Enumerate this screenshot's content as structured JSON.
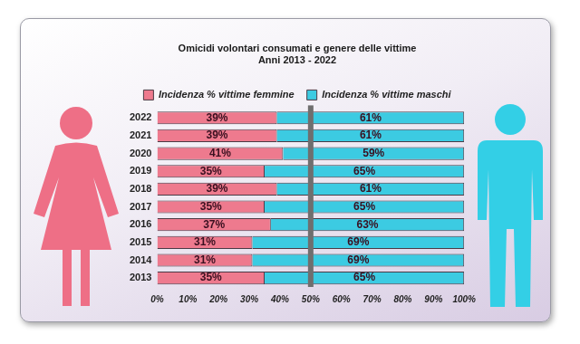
{
  "chart_data": {
    "type": "bar",
    "title": "Omicidi volontari consumati e genere delle vittime",
    "subtitle": "Anni 2013 - 2022",
    "orientation": "horizontal",
    "stacked": true,
    "data_labels": true,
    "grid": false,
    "legend": "top",
    "categories": [
      "2022",
      "2021",
      "2020",
      "2019",
      "2018",
      "2017",
      "2016",
      "2015",
      "2014",
      "2013"
    ],
    "series": [
      {
        "name": "Incidenza % vittime femmine",
        "color": "#ee7a8e",
        "values": [
          39,
          39,
          41,
          35,
          39,
          35,
          37,
          31,
          31,
          35
        ],
        "value_labels": [
          "39%",
          "39%",
          "41%",
          "35%",
          "39%",
          "35%",
          "37%",
          "31%",
          "31%",
          "35%"
        ]
      },
      {
        "name": "Incidenza % vittime maschi",
        "color": "#3ccbe2",
        "values": [
          61,
          61,
          59,
          65,
          61,
          65,
          63,
          69,
          69,
          65
        ],
        "value_labels": [
          "61%",
          "61%",
          "59%",
          "65%",
          "61%",
          "65%",
          "63%",
          "69%",
          "69%",
          "65%"
        ]
      }
    ],
    "reference_line": 50,
    "xlim": [
      0,
      100
    ],
    "xticks": [
      {
        "value": 0,
        "label": "0%"
      },
      {
        "value": 10,
        "label": "10%"
      },
      {
        "value": 20,
        "label": "20%"
      },
      {
        "value": 30,
        "label": "30%"
      },
      {
        "value": 40,
        "label": "40%"
      },
      {
        "value": 50,
        "label": "50%"
      },
      {
        "value": 60,
        "label": "60%"
      },
      {
        "value": 70,
        "label": "70%"
      },
      {
        "value": 80,
        "label": "80%"
      },
      {
        "value": 90,
        "label": "90%"
      },
      {
        "value": 100,
        "label": "100%"
      }
    ]
  }
}
